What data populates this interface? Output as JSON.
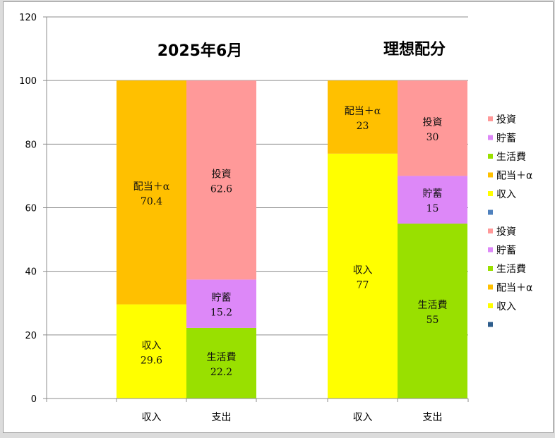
{
  "chart_data": {
    "type": "bar",
    "stacked": true,
    "ylim": [
      0,
      120
    ],
    "yticks": [
      0,
      20,
      40,
      60,
      80,
      100,
      120
    ],
    "grid": true,
    "legend_position": "right",
    "groups": [
      {
        "title": "2025年6月",
        "bars": [
          {
            "category": "収入",
            "segments": [
              {
                "series": "収入",
                "value": 29.6,
                "label_value": "29.6"
              },
              {
                "series": "配当＋α",
                "value": 70.4,
                "label_value": "70.4"
              }
            ]
          },
          {
            "category": "支出",
            "segments": [
              {
                "series": "生活費",
                "value": 22.2,
                "label_value": "22.2"
              },
              {
                "series": "貯蓄",
                "value": 15.2,
                "label_value": "15.2"
              },
              {
                "series": "投資",
                "value": 62.6,
                "label_value": "62.6"
              }
            ]
          }
        ]
      },
      {
        "title": "理想配分",
        "bars": [
          {
            "category": "収入",
            "segments": [
              {
                "series": "収入",
                "value": 77,
                "label_value": "77"
              },
              {
                "series": "配当＋α",
                "value": 23,
                "label_value": "23"
              }
            ]
          },
          {
            "category": "支出",
            "segments": [
              {
                "series": "生活費",
                "value": 55,
                "label_value": "55"
              },
              {
                "series": "貯蓄",
                "value": 15,
                "label_value": "15"
              },
              {
                "series": "投資",
                "value": 30,
                "label_value": "30"
              }
            ]
          }
        ]
      }
    ],
    "series_colors": {
      "収入": "#ffff00",
      "配当＋α": "#ffc000",
      "生活費": "#99e000",
      "貯蓄": "#dd88f8",
      "投資": "#ff9999"
    },
    "legend": [
      {
        "name": "投資",
        "color": "#ff9999"
      },
      {
        "name": "貯蓄",
        "color": "#dd88f8"
      },
      {
        "name": "生活費",
        "color": "#99e000"
      },
      {
        "name": "配当＋α",
        "color": "#ffc000"
      },
      {
        "name": "収入",
        "color": "#ffff00"
      },
      {
        "name": "",
        "color": "#4f81bd"
      },
      {
        "name": "投資",
        "color": "#ff9999"
      },
      {
        "name": "貯蓄",
        "color": "#dd88f8"
      },
      {
        "name": "生活費",
        "color": "#99e000"
      },
      {
        "name": "配当＋α",
        "color": "#ffc000"
      },
      {
        "name": "収入",
        "color": "#ffff00"
      },
      {
        "name": "",
        "color": "#2e5d8c"
      }
    ]
  }
}
